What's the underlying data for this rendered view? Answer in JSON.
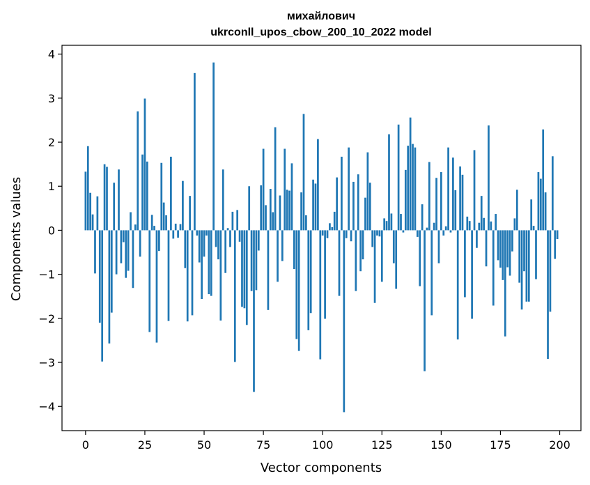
{
  "chart_data": {
    "type": "bar",
    "title_line1": "михайлович",
    "title_line2": "ukrconll_upos_cbow_200_10_2022 model",
    "xlabel": "Vector components",
    "ylabel": "Components values",
    "xlim": [
      -9.95,
      208.95
    ],
    "ylim": [
      -4.55,
      4.2
    ],
    "xticks": [
      0,
      25,
      50,
      75,
      100,
      125,
      150,
      175,
      200
    ],
    "xtick_labels": [
      "0",
      "25",
      "50",
      "75",
      "100",
      "125",
      "150",
      "175",
      "200"
    ],
    "yticks": [
      -4,
      -3,
      -2,
      -1,
      0,
      1,
      2,
      3,
      4
    ],
    "ytick_labels": [
      "−4",
      "−3",
      "−2",
      "−1",
      "0",
      "1",
      "2",
      "3",
      "4"
    ],
    "grid": false,
    "bar_color": "#1f77b4",
    "x": [
      0,
      1,
      2,
      3,
      4,
      5,
      6,
      7,
      8,
      9,
      10,
      11,
      12,
      13,
      14,
      15,
      16,
      17,
      18,
      19,
      20,
      21,
      22,
      23,
      24,
      25,
      26,
      27,
      28,
      29,
      30,
      31,
      32,
      33,
      34,
      35,
      36,
      37,
      38,
      39,
      40,
      41,
      42,
      43,
      44,
      45,
      46,
      47,
      48,
      49,
      50,
      51,
      52,
      53,
      54,
      55,
      56,
      57,
      58,
      59,
      60,
      61,
      62,
      63,
      64,
      65,
      66,
      67,
      68,
      69,
      70,
      71,
      72,
      73,
      74,
      75,
      76,
      77,
      78,
      79,
      80,
      81,
      82,
      83,
      84,
      85,
      86,
      87,
      88,
      89,
      90,
      91,
      92,
      93,
      94,
      95,
      96,
      97,
      98,
      99,
      100,
      101,
      102,
      103,
      104,
      105,
      106,
      107,
      108,
      109,
      110,
      111,
      112,
      113,
      114,
      115,
      116,
      117,
      118,
      119,
      120,
      121,
      122,
      123,
      124,
      125,
      126,
      127,
      128,
      129,
      130,
      131,
      132,
      133,
      134,
      135,
      136,
      137,
      138,
      139,
      140,
      141,
      142,
      143,
      144,
      145,
      146,
      147,
      148,
      149,
      150,
      151,
      152,
      153,
      154,
      155,
      156,
      157,
      158,
      159,
      160,
      161,
      162,
      163,
      164,
      165,
      166,
      167,
      168,
      169,
      170,
      171,
      172,
      173,
      174,
      175,
      176,
      177,
      178,
      179,
      180,
      181,
      182,
      183,
      184,
      185,
      186,
      187,
      188,
      189,
      190,
      191,
      192,
      193,
      194,
      195,
      196,
      197,
      198,
      199
    ],
    "values": [
      1.33,
      1.91,
      0.85,
      0.36,
      -0.98,
      0.77,
      -2.1,
      -2.98,
      1.5,
      1.44,
      -2.57,
      -1.87,
      1.08,
      -1.0,
      1.38,
      -0.75,
      -0.27,
      -1.08,
      -0.92,
      0.41,
      -1.31,
      0.13,
      2.7,
      -0.6,
      1.72,
      2.99,
      1.56,
      -2.31,
      0.35,
      0.1,
      -2.55,
      -0.47,
      1.53,
      0.63,
      0.34,
      -2.06,
      1.67,
      -0.19,
      0.15,
      -0.17,
      0.14,
      1.12,
      -0.86,
      -2.07,
      0.78,
      -1.93,
      3.57,
      -0.12,
      -0.73,
      -1.56,
      -0.6,
      -0.12,
      -1.45,
      -1.49,
      3.81,
      -0.38,
      -0.66,
      -2.05,
      1.38,
      -0.97,
      0.05,
      -0.38,
      0.42,
      -2.99,
      0.46,
      -0.26,
      -1.74,
      -1.77,
      -2.15,
      1.0,
      -1.38,
      -3.67,
      -1.36,
      -0.46,
      1.02,
      1.85,
      0.57,
      -1.81,
      0.94,
      0.41,
      2.34,
      -1.17,
      0.79,
      -0.7,
      1.85,
      0.92,
      0.9,
      1.52,
      -0.88,
      -2.47,
      -2.74,
      0.86,
      2.64,
      0.34,
      -2.27,
      -1.88,
      1.15,
      1.06,
      2.07,
      -2.93,
      -0.12,
      -2.01,
      -0.18,
      0.16,
      0.07,
      0.42,
      1.2,
      -1.49,
      1.67,
      -4.13,
      -0.18,
      1.88,
      -0.25,
      1.1,
      -1.38,
      1.27,
      -0.93,
      -0.66,
      0.74,
      1.77,
      1.08,
      -0.38,
      -1.65,
      -0.12,
      -0.14,
      -1.17,
      0.27,
      0.21,
      2.18,
      0.38,
      -0.75,
      -1.33,
      2.4,
      0.37,
      -0.05,
      1.37,
      1.92,
      2.56,
      1.96,
      1.88,
      -0.15,
      -1.27,
      0.59,
      -3.2,
      0.06,
      1.55,
      -1.93,
      0.17,
      1.19,
      -0.75,
      1.32,
      -0.12,
      0.09,
      1.88,
      -0.05,
      1.65,
      0.91,
      -2.48,
      1.45,
      1.26,
      -1.52,
      0.31,
      0.21,
      -2.01,
      1.82,
      -0.4,
      0.17,
      0.78,
      0.28,
      -0.82,
      2.38,
      0.2,
      -1.71,
      0.37,
      -0.68,
      -0.85,
      -1.13,
      -2.41,
      -0.84,
      -1.03,
      -0.48,
      0.27,
      0.92,
      -1.19,
      -1.8,
      -0.93,
      -1.62,
      -1.62,
      0.7,
      0.1,
      -1.11,
      1.32,
      1.17,
      2.29,
      0.86,
      -2.92,
      -1.85,
      1.68,
      -0.65,
      -0.2
    ]
  }
}
